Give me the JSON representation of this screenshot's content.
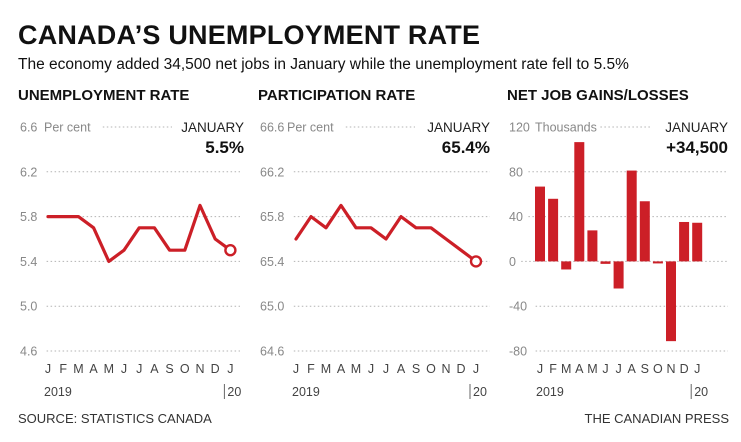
{
  "header": {
    "title": "CANADA’S UNEMPLOYMENT RATE",
    "subtitle": "The economy added 34,500 net jobs in January while the unemployment rate fell to 5.5%"
  },
  "footer": {
    "source": "SOURCE: STATISTICS CANADA",
    "credit": "THE CANADIAN PRESS"
  },
  "colors": {
    "accent": "#cc1f27",
    "grid": "#b3b3b3",
    "text": "#111111"
  },
  "chart_data": [
    {
      "type": "line",
      "title": "UNEMPLOYMENT RATE",
      "unit_label": "Per cent",
      "highlight_month": "JANUARY",
      "highlight_value": "5.5%",
      "categories": [
        "J",
        "F",
        "M",
        "A",
        "M",
        "J",
        "J",
        "A",
        "S",
        "O",
        "N",
        "D",
        "J"
      ],
      "year_labels": [
        "2019",
        "20"
      ],
      "values": [
        5.8,
        5.8,
        5.8,
        5.7,
        5.4,
        5.5,
        5.7,
        5.7,
        5.5,
        5.5,
        5.9,
        5.6,
        5.5
      ],
      "yticks": [
        6.6,
        6.2,
        5.8,
        5.4,
        5.0,
        4.6
      ],
      "ytick_labels": [
        "6.6",
        "6.2",
        "5.8",
        "5.4",
        "5.0",
        "4.6"
      ],
      "ylim": [
        4.6,
        6.6
      ],
      "grid": true
    },
    {
      "type": "line",
      "title": "PARTICIPATION RATE",
      "unit_label": "Per cent",
      "highlight_month": "JANUARY",
      "highlight_value": "65.4%",
      "categories": [
        "J",
        "F",
        "M",
        "A",
        "M",
        "J",
        "J",
        "A",
        "S",
        "O",
        "N",
        "D",
        "J"
      ],
      "year_labels": [
        "2019",
        "20"
      ],
      "values": [
        65.6,
        65.8,
        65.7,
        65.9,
        65.7,
        65.7,
        65.6,
        65.8,
        65.7,
        65.7,
        65.6,
        65.5,
        65.4
      ],
      "yticks": [
        66.6,
        66.2,
        65.8,
        65.4,
        65.0,
        64.6
      ],
      "ytick_labels": [
        "66.6",
        "66.2",
        "65.8",
        "65.4",
        "65.0",
        "64.6"
      ],
      "ylim": [
        64.6,
        66.6
      ],
      "grid": true
    },
    {
      "type": "bar",
      "title": "NET JOB GAINS/LOSSES",
      "unit_label": "Thousands",
      "highlight_month": "JANUARY",
      "highlight_value": "+34,500",
      "categories": [
        "J",
        "F",
        "M",
        "A",
        "M",
        "J",
        "J",
        "A",
        "S",
        "O",
        "N",
        "D",
        "J"
      ],
      "year_labels": [
        "2019",
        "20"
      ],
      "values": [
        66.8,
        55.9,
        -7.2,
        106.5,
        27.7,
        -2.2,
        -24.2,
        81.1,
        53.7,
        -1.8,
        -71.2,
        35.2,
        34.5
      ],
      "yticks": [
        120,
        80,
        40,
        0,
        -40,
        -80
      ],
      "ytick_labels": [
        "120",
        "80",
        "40",
        "0",
        "-40",
        "-80"
      ],
      "ylim": [
        -80,
        120
      ],
      "grid": true
    }
  ]
}
